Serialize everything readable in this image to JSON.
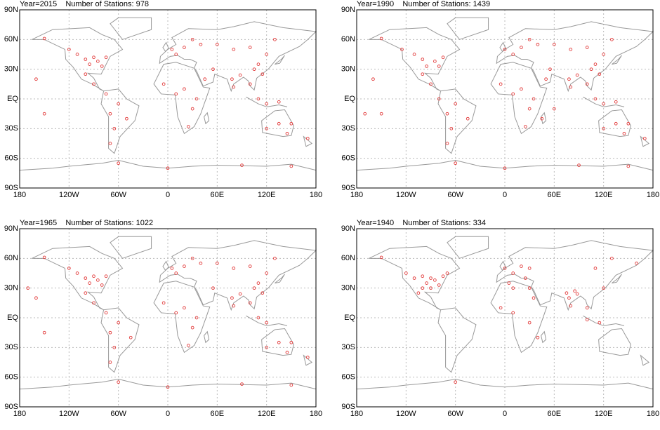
{
  "xlim": [
    -180,
    180
  ],
  "ylim": [
    -90,
    90
  ],
  "xticks": [
    {
      "value": -180,
      "label": "180"
    },
    {
      "value": -120,
      "label": "120W"
    },
    {
      "value": -60,
      "label": "60W"
    },
    {
      "value": 0,
      "label": "0"
    },
    {
      "value": 60,
      "label": "60E"
    },
    {
      "value": 120,
      "label": "120E"
    },
    {
      "value": 180,
      "label": "180"
    }
  ],
  "yticks": [
    {
      "value": 90,
      "label": "90N"
    },
    {
      "value": 60,
      "label": "60N"
    },
    {
      "value": 30,
      "label": "30N"
    },
    {
      "value": 0,
      "label": "EQ"
    },
    {
      "value": -30,
      "label": "30S"
    },
    {
      "value": -60,
      "label": "60S"
    },
    {
      "value": -90,
      "label": "90S"
    }
  ],
  "panels": [
    {
      "title": "Year=2015    Number of Stations: 978",
      "stations": [
        [
          -150,
          61
        ],
        [
          -120,
          50
        ],
        [
          -110,
          45
        ],
        [
          -100,
          40
        ],
        [
          -95,
          35
        ],
        [
          -90,
          42
        ],
        [
          -85,
          38
        ],
        [
          -80,
          33
        ],
        [
          -75,
          42
        ],
        [
          -100,
          25
        ],
        [
          -90,
          15
        ],
        [
          -75,
          5
        ],
        [
          -70,
          -15
        ],
        [
          -60,
          -5
        ],
        [
          -50,
          -20
        ],
        [
          -65,
          -30
        ],
        [
          -70,
          -45
        ],
        [
          -160,
          20
        ],
        [
          -150,
          -15
        ],
        [
          5,
          50
        ],
        [
          10,
          45
        ],
        [
          20,
          52
        ],
        [
          30,
          60
        ],
        [
          40,
          55
        ],
        [
          60,
          55
        ],
        [
          80,
          50
        ],
        [
          100,
          52
        ],
        [
          120,
          45
        ],
        [
          130,
          60
        ],
        [
          110,
          35
        ],
        [
          115,
          25
        ],
        [
          105,
          30
        ],
        [
          78,
          20
        ],
        [
          80,
          12
        ],
        [
          88,
          24
        ],
        [
          100,
          15
        ],
        [
          110,
          0
        ],
        [
          120,
          -5
        ],
        [
          135,
          -3
        ],
        [
          20,
          10
        ],
        [
          30,
          -10
        ],
        [
          10,
          5
        ],
        [
          -5,
          15
        ],
        [
          25,
          -28
        ],
        [
          35,
          0
        ],
        [
          45,
          20
        ],
        [
          55,
          30
        ],
        [
          135,
          -25
        ],
        [
          145,
          -35
        ],
        [
          120,
          -30
        ],
        [
          150,
          -25
        ],
        [
          170,
          -40
        ],
        [
          -60,
          -65
        ],
        [
          0,
          -70
        ],
        [
          90,
          -67
        ],
        [
          150,
          -68
        ]
      ]
    },
    {
      "title": "Year=1990    Number of Stations: 1439",
      "stations": [
        [
          -150,
          61
        ],
        [
          -125,
          50
        ],
        [
          -110,
          45
        ],
        [
          -100,
          40
        ],
        [
          -95,
          33
        ],
        [
          -85,
          38
        ],
        [
          -80,
          33
        ],
        [
          -75,
          42
        ],
        [
          -100,
          25
        ],
        [
          -90,
          15
        ],
        [
          -80,
          0
        ],
        [
          -70,
          -15
        ],
        [
          -60,
          -5
        ],
        [
          -45,
          -20
        ],
        [
          -65,
          -30
        ],
        [
          -70,
          -45
        ],
        [
          -160,
          20
        ],
        [
          -150,
          -15
        ],
        [
          -170,
          -15
        ],
        [
          0,
          50
        ],
        [
          10,
          45
        ],
        [
          20,
          52
        ],
        [
          30,
          60
        ],
        [
          40,
          55
        ],
        [
          60,
          55
        ],
        [
          80,
          50
        ],
        [
          100,
          52
        ],
        [
          120,
          45
        ],
        [
          130,
          60
        ],
        [
          110,
          35
        ],
        [
          115,
          25
        ],
        [
          105,
          30
        ],
        [
          78,
          20
        ],
        [
          80,
          12
        ],
        [
          88,
          24
        ],
        [
          100,
          15
        ],
        [
          110,
          0
        ],
        [
          120,
          -5
        ],
        [
          135,
          -3
        ],
        [
          20,
          10
        ],
        [
          30,
          -10
        ],
        [
          10,
          5
        ],
        [
          -5,
          15
        ],
        [
          25,
          -28
        ],
        [
          35,
          0
        ],
        [
          45,
          -20
        ],
        [
          50,
          20
        ],
        [
          55,
          30
        ],
        [
          135,
          -25
        ],
        [
          145,
          -35
        ],
        [
          120,
          -30
        ],
        [
          150,
          -25
        ],
        [
          170,
          -40
        ],
        [
          -60,
          -65
        ],
        [
          0,
          -70
        ],
        [
          90,
          -67
        ],
        [
          150,
          -68
        ],
        [
          60,
          -10
        ]
      ]
    },
    {
      "title": "Year=1965    Number of Stations: 1022",
      "stations": [
        [
          -150,
          61
        ],
        [
          -120,
          50
        ],
        [
          -110,
          45
        ],
        [
          -100,
          40
        ],
        [
          -95,
          35
        ],
        [
          -90,
          42
        ],
        [
          -85,
          38
        ],
        [
          -80,
          33
        ],
        [
          -75,
          42
        ],
        [
          -100,
          25
        ],
        [
          -90,
          15
        ],
        [
          -75,
          5
        ],
        [
          -70,
          -15
        ],
        [
          -60,
          -5
        ],
        [
          -45,
          -20
        ],
        [
          -65,
          -30
        ],
        [
          -70,
          -45
        ],
        [
          -160,
          20
        ],
        [
          -150,
          -15
        ],
        [
          -170,
          30
        ],
        [
          5,
          50
        ],
        [
          10,
          45
        ],
        [
          20,
          52
        ],
        [
          30,
          60
        ],
        [
          40,
          55
        ],
        [
          60,
          55
        ],
        [
          80,
          50
        ],
        [
          100,
          52
        ],
        [
          120,
          45
        ],
        [
          130,
          60
        ],
        [
          110,
          35
        ],
        [
          115,
          25
        ],
        [
          105,
          30
        ],
        [
          78,
          20
        ],
        [
          80,
          12
        ],
        [
          88,
          24
        ],
        [
          100,
          15
        ],
        [
          110,
          0
        ],
        [
          120,
          -5
        ],
        [
          20,
          10
        ],
        [
          30,
          -10
        ],
        [
          10,
          5
        ],
        [
          -5,
          15
        ],
        [
          25,
          -28
        ],
        [
          35,
          0
        ],
        [
          55,
          30
        ],
        [
          135,
          -25
        ],
        [
          145,
          -35
        ],
        [
          120,
          -30
        ],
        [
          150,
          -25
        ],
        [
          170,
          -40
        ],
        [
          -60,
          -65
        ],
        [
          0,
          -70
        ],
        [
          90,
          -67
        ],
        [
          150,
          -68
        ]
      ]
    },
    {
      "title": "Year=1940    Number of Stations: 334",
      "stations": [
        [
          -120,
          45
        ],
        [
          -110,
          40
        ],
        [
          -100,
          42
        ],
        [
          -95,
          35
        ],
        [
          -90,
          40
        ],
        [
          -85,
          38
        ],
        [
          -80,
          33
        ],
        [
          -75,
          42
        ],
        [
          -100,
          30
        ],
        [
          -90,
          30
        ],
        [
          -105,
          25
        ],
        [
          -70,
          45
        ],
        [
          0,
          50
        ],
        [
          10,
          45
        ],
        [
          20,
          52
        ],
        [
          30,
          50
        ],
        [
          25,
          40
        ],
        [
          5,
          35
        ],
        [
          10,
          30
        ],
        [
          30,
          30
        ],
        [
          35,
          20
        ],
        [
          -5,
          10
        ],
        [
          10,
          5
        ],
        [
          30,
          -5
        ],
        [
          40,
          -20
        ],
        [
          75,
          25
        ],
        [
          78,
          20
        ],
        [
          80,
          12
        ],
        [
          88,
          24
        ],
        [
          85,
          27
        ],
        [
          100,
          10
        ],
        [
          100,
          -2
        ],
        [
          115,
          -5
        ],
        [
          130,
          60
        ],
        [
          110,
          50
        ],
        [
          120,
          30
        ],
        [
          160,
          55
        ],
        [
          -150,
          61
        ],
        [
          -60,
          -65
        ]
      ]
    }
  ]
}
